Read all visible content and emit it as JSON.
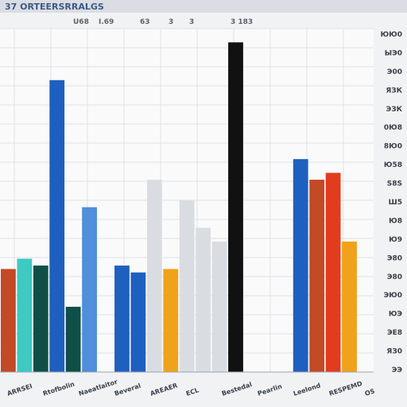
{
  "window": {
    "title": "37 ORTEERSRRALGS",
    "toolbar_labels": [
      "U68",
      "I.69",
      "63",
      "3",
      "3",
      "3 183"
    ]
  },
  "colors": {
    "background": "#f1f2f4",
    "plot_background": "#fafafa",
    "grid": "#dfe3e8",
    "title_bar": "#dadde3",
    "teal": "#3ec9c2",
    "dark_green": "#0e4f47",
    "blue": "#1f5fbf",
    "light_blue": "#4f8fdc",
    "orange": "#f0a21a",
    "rust": "#c24a24",
    "lime": "#7fcf3b",
    "black": "#111111",
    "red": "#e23c1f"
  },
  "chart_data": {
    "type": "bar",
    "xlabel": "",
    "ylabel": "",
    "ylim": [
      0,
      1000
    ],
    "grid": true,
    "legend": "none",
    "y_tick_labels": [
      "ЮЮ0",
      "ЫЭ0",
      "Э00",
      "ЯЗК",
      "ЭЗК",
      "0Ю8",
      "8Ю0",
      "Ю58",
      "S8S",
      "Ш5",
      "Ю8",
      "Ю9",
      "Э80",
      "Э80",
      "ЭЮ0",
      "ЮЭ",
      "ЭЕ8",
      "ЯЗ0",
      "ЭЭ"
    ],
    "x_tick_labels": [
      "ARRSEI",
      "Rtofbolin",
      "Naeatlaitor",
      "Beveral",
      "AREAER",
      "ECL",
      "Bestedal",
      "Pearlin",
      "Leelond",
      "RESPEMD",
      "OS"
    ],
    "series": [
      {
        "color": "#c24a24",
        "values": [
          300,
          0,
          0,
          0,
          0,
          0,
          0,
          0,
          0,
          0,
          0,
          0,
          0,
          0,
          0,
          0,
          0,
          0,
          0,
          560,
          0,
          0,
          0
        ]
      },
      {
        "color": "#3ec9c2",
        "values": [
          0,
          330,
          0,
          0,
          0,
          0,
          0,
          0,
          0,
          0,
          0,
          0,
          0,
          0,
          0,
          0,
          0,
          0,
          0,
          0,
          0,
          0,
          0
        ]
      },
      {
        "color": "#0e4f47",
        "values": [
          0,
          0,
          310,
          0,
          190,
          0,
          0,
          0,
          0,
          0,
          0,
          0,
          0,
          0,
          0,
          0,
          0,
          0,
          0,
          0,
          0,
          0,
          0
        ]
      },
      {
        "color": "#1f5fbf",
        "values": [
          0,
          0,
          0,
          850,
          0,
          0,
          0,
          310,
          290,
          0,
          0,
          0,
          0,
          0,
          0,
          0,
          0,
          0,
          620,
          0,
          0,
          0,
          0
        ]
      },
      {
        "color": "#4f8fdc",
        "values": [
          0,
          0,
          0,
          0,
          0,
          480,
          0,
          0,
          0,
          0,
          0,
          0,
          0,
          0,
          0,
          0,
          0,
          0,
          0,
          0,
          0,
          0,
          0
        ]
      },
      {
        "color": "#f0a21a",
        "values": [
          0,
          0,
          0,
          0,
          0,
          0,
          0,
          0,
          0,
          0,
          300,
          0,
          0,
          0,
          0,
          0,
          0,
          0,
          0,
          0,
          0,
          380,
          0
        ]
      },
      {
        "color": "#d9dde2",
        "values": [
          0,
          0,
          0,
          0,
          0,
          0,
          0,
          0,
          0,
          560,
          0,
          500,
          420,
          380,
          0,
          0,
          0,
          0,
          0,
          0,
          0,
          0,
          0
        ]
      },
      {
        "color": "#111111",
        "values": [
          0,
          0,
          0,
          0,
          0,
          0,
          0,
          0,
          0,
          0,
          0,
          0,
          0,
          0,
          960,
          0,
          0,
          0,
          0,
          0,
          0,
          0,
          0
        ]
      },
      {
        "color": "#e23c1f",
        "values": [
          0,
          0,
          0,
          0,
          0,
          0,
          0,
          0,
          0,
          0,
          0,
          0,
          0,
          0,
          0,
          0,
          0,
          0,
          0,
          0,
          580,
          0,
          0
        ]
      }
    ],
    "x": [
      "b1",
      "b2",
      "b3",
      "b4",
      "b5",
      "b6",
      "b7",
      "b8",
      "b9",
      "b10",
      "b11",
      "b12",
      "b13",
      "b14",
      "b15",
      "b16",
      "b17",
      "b18",
      "b19",
      "b20",
      "b21",
      "b22",
      "b23"
    ]
  }
}
